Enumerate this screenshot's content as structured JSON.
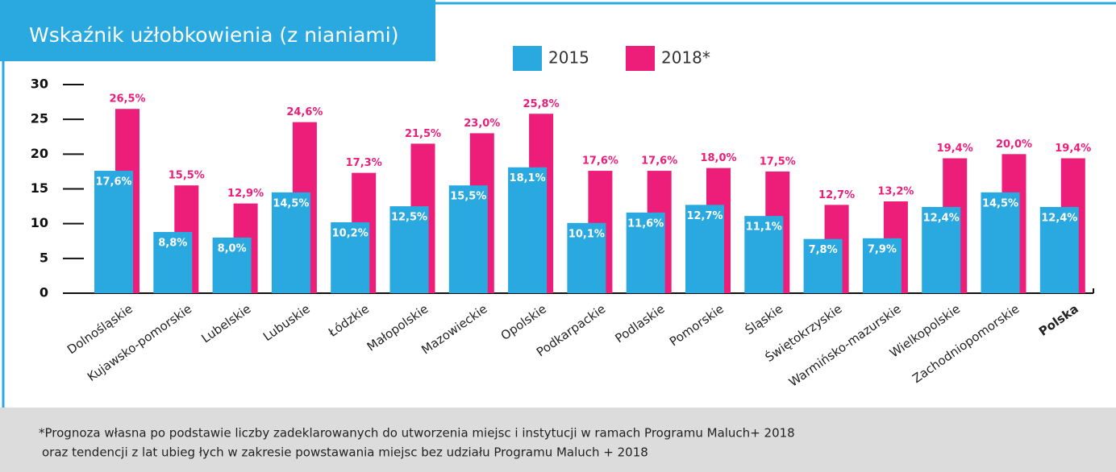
{
  "chart_data": {
    "type": "bar",
    "title": "Wskaźnik użłobkowienia (z nianiami)",
    "categories": [
      "Dolnośląskie",
      "Kujawsko-pomorskie",
      "Lubelskie",
      "Lubuskie",
      "Łódzkie",
      "Małopolskie",
      "Mazowieckie",
      "Opolskie",
      "Podkarpackie",
      "Podlaskie",
      "Pomorskie",
      "Śląskie",
      "Świętokrzyskie",
      "Warmińsko-mazurskie",
      "Wielkopolskie",
      "Zachodniopomorskie",
      "Polska"
    ],
    "series": [
      {
        "name": "2015",
        "color": "#29a9e0",
        "values": [
          17.6,
          8.8,
          8.0,
          14.5,
          10.2,
          12.5,
          15.5,
          18.1,
          10.1,
          11.6,
          12.7,
          11.1,
          7.8,
          7.9,
          12.4,
          14.5,
          12.4
        ],
        "value_labels": [
          "17,6%",
          "8,8%",
          "8,0%",
          "14,5%",
          "10,2%",
          "12,5%",
          "15,5%",
          "18,1%",
          "10,1%",
          "11,6%",
          "12,7%",
          "11,1%",
          "7,8%",
          "7,9%",
          "12,4%",
          "14,5%",
          "12,4%"
        ]
      },
      {
        "name": "2018*",
        "color": "#ec1e79",
        "values": [
          26.5,
          15.5,
          12.9,
          24.6,
          17.3,
          21.5,
          23.0,
          25.8,
          17.6,
          17.6,
          18.0,
          17.5,
          12.7,
          13.2,
          19.4,
          20.0,
          19.4
        ],
        "value_labels": [
          "26,5%",
          "15,5%",
          "12,9%",
          "24,6%",
          "17,3%",
          "21,5%",
          "23,0%",
          "25,8%",
          "17,6%",
          "17,6%",
          "18,0%",
          "17,5%",
          "12,7%",
          "13,2%",
          "19,4%",
          "20,0%",
          "19,4%"
        ]
      }
    ],
    "ylim": [
      0,
      30
    ],
    "yticks": [
      0,
      5,
      10,
      15,
      20,
      25,
      30
    ],
    "footnote": [
      "*Prognoza własna po podstawie liczby zadeklarowanych do utworzenia miejsc i instytucji w ramach Programu Maluch+ 2018",
      "oraz tendencji z lat ubieg łych w zakresie powstawania miejsc bez udziału Programu Maluch + 2018"
    ]
  }
}
